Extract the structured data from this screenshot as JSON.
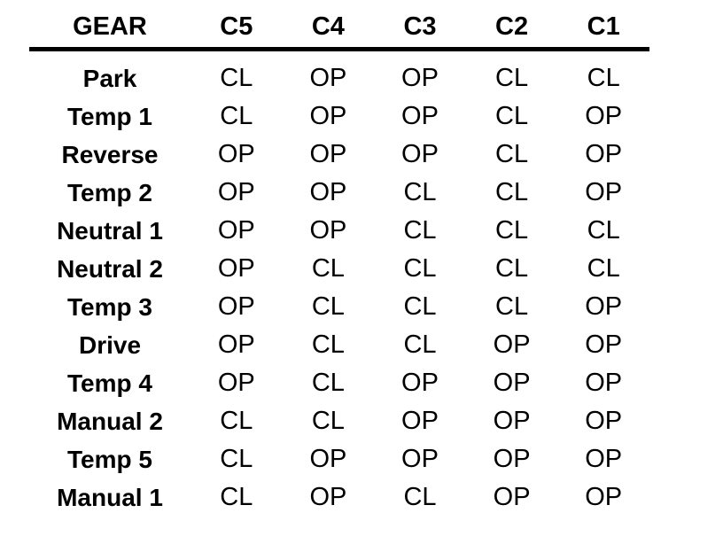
{
  "table": {
    "columns": [
      "GEAR",
      "C5",
      "C4",
      "C3",
      "C2",
      "C1"
    ],
    "rows": [
      {
        "gear": "Park",
        "values": [
          "CL",
          "OP",
          "OP",
          "CL",
          "CL"
        ]
      },
      {
        "gear": "Temp 1",
        "values": [
          "CL",
          "OP",
          "OP",
          "CL",
          "OP"
        ]
      },
      {
        "gear": "Reverse",
        "values": [
          "OP",
          "OP",
          "OP",
          "CL",
          "OP"
        ]
      },
      {
        "gear": "Temp 2",
        "values": [
          "OP",
          "OP",
          "CL",
          "CL",
          "OP"
        ]
      },
      {
        "gear": "Neutral 1",
        "values": [
          "OP",
          "OP",
          "CL",
          "CL",
          "CL"
        ]
      },
      {
        "gear": "Neutral 2",
        "values": [
          "OP",
          "CL",
          "CL",
          "CL",
          "CL"
        ]
      },
      {
        "gear": "Temp 3",
        "values": [
          "OP",
          "CL",
          "CL",
          "CL",
          "OP"
        ]
      },
      {
        "gear": "Drive",
        "values": [
          "OP",
          "CL",
          "CL",
          "OP",
          "OP"
        ]
      },
      {
        "gear": "Temp 4",
        "values": [
          "OP",
          "CL",
          "OP",
          "OP",
          "OP"
        ]
      },
      {
        "gear": "Manual 2",
        "values": [
          "CL",
          "CL",
          "OP",
          "OP",
          "OP"
        ]
      },
      {
        "gear": "Temp 5",
        "values": [
          "CL",
          "OP",
          "OP",
          "OP",
          "OP"
        ]
      },
      {
        "gear": "Manual 1",
        "values": [
          "CL",
          "OP",
          "CL",
          "OP",
          "OP"
        ]
      }
    ]
  },
  "colors": {
    "text": "#000000",
    "background": "#ffffff",
    "rule": "#000000"
  }
}
